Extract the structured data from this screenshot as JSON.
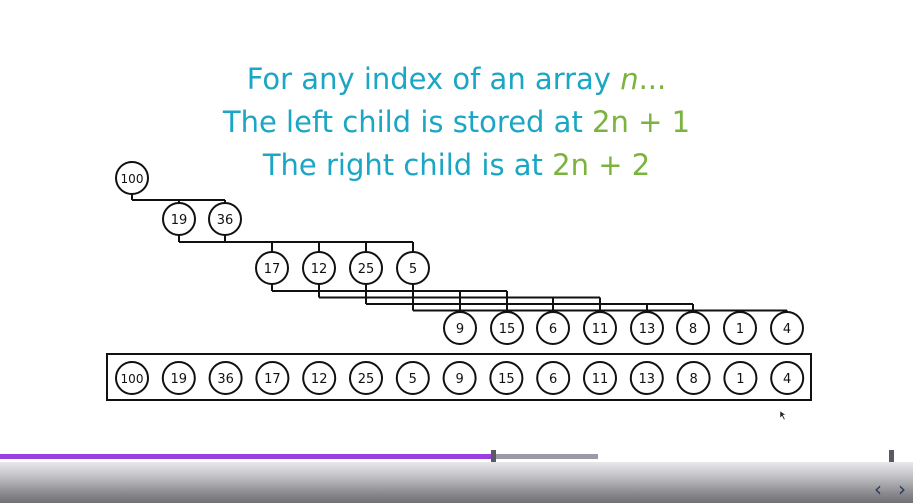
{
  "heading": {
    "line1": {
      "pre": "For any index of an array ",
      "var": "n",
      "post": "..."
    },
    "line2": {
      "pre": "The left child is stored at ",
      "formula": "2n + 1"
    },
    "line3": {
      "pre": "The right child is at ",
      "formula": "2n + 2"
    }
  },
  "tree": {
    "levels": [
      [
        100
      ],
      [
        19,
        36
      ],
      [
        17,
        12,
        25,
        5
      ],
      [
        9,
        15,
        6,
        11,
        13,
        8,
        1,
        4
      ]
    ]
  },
  "array": {
    "values": [
      100,
      19,
      36,
      17,
      12,
      25,
      5,
      9,
      15,
      6,
      11,
      13,
      8,
      1,
      4
    ]
  },
  "player": {
    "played_fraction": 0.54,
    "buffered_fraction": 0.655
  },
  "colors": {
    "heading": "#1aa6c4",
    "accent": "#7ab33e",
    "progress_played": "#9b3ee0",
    "progress_buffered": "#9a9aa8",
    "nav_icon": "#2a3a5a"
  },
  "icons": {
    "prev": "chevron-left-icon",
    "next": "chevron-right-icon",
    "cursor": "mouse-pointer-icon"
  }
}
